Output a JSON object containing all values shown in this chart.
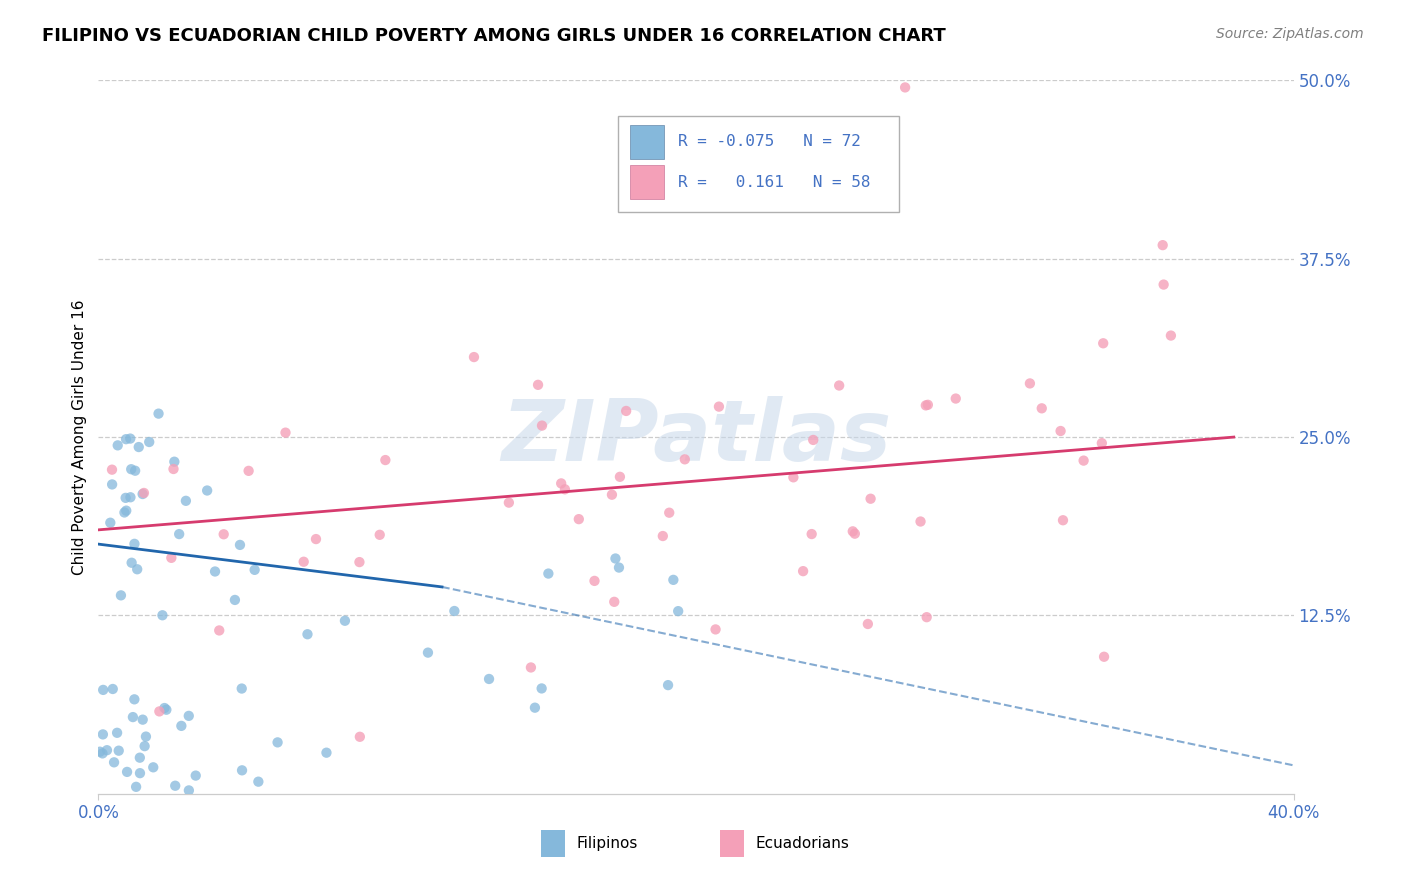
{
  "title": "FILIPINO VS ECUADORIAN CHILD POVERTY AMONG GIRLS UNDER 16 CORRELATION CHART",
  "source": "Source: ZipAtlas.com",
  "ylabel": "Child Poverty Among Girls Under 16",
  "legend_labels": [
    "Filipinos",
    "Ecuadorians"
  ],
  "filipino_color": "#85b8db",
  "ecuadorian_color": "#f4a0b8",
  "filipino_line_color": "#2166ac",
  "ecuadorian_line_color": "#d63b6e",
  "R_filipino": -0.075,
  "N_filipino": 72,
  "R_ecuadorian": 0.161,
  "N_ecuadorian": 58,
  "watermark": "ZIPatlas",
  "xlim": [
    0.0,
    0.4
  ],
  "ylim": [
    0.0,
    0.5
  ],
  "ytick_vals": [
    0.125,
    0.25,
    0.375,
    0.5
  ],
  "ytick_labels": [
    "12.5%",
    "25.0%",
    "37.5%",
    "50.0%"
  ],
  "xtick_vals": [
    0.0,
    0.4
  ],
  "xtick_labels": [
    "0.0%",
    "40.0%"
  ],
  "right_axis_color": "#4472c4",
  "grid_color": "#cccccc",
  "background": "white",
  "legend_R_color": "#3a3a8c",
  "legend_N_color": "#3a3a8c"
}
